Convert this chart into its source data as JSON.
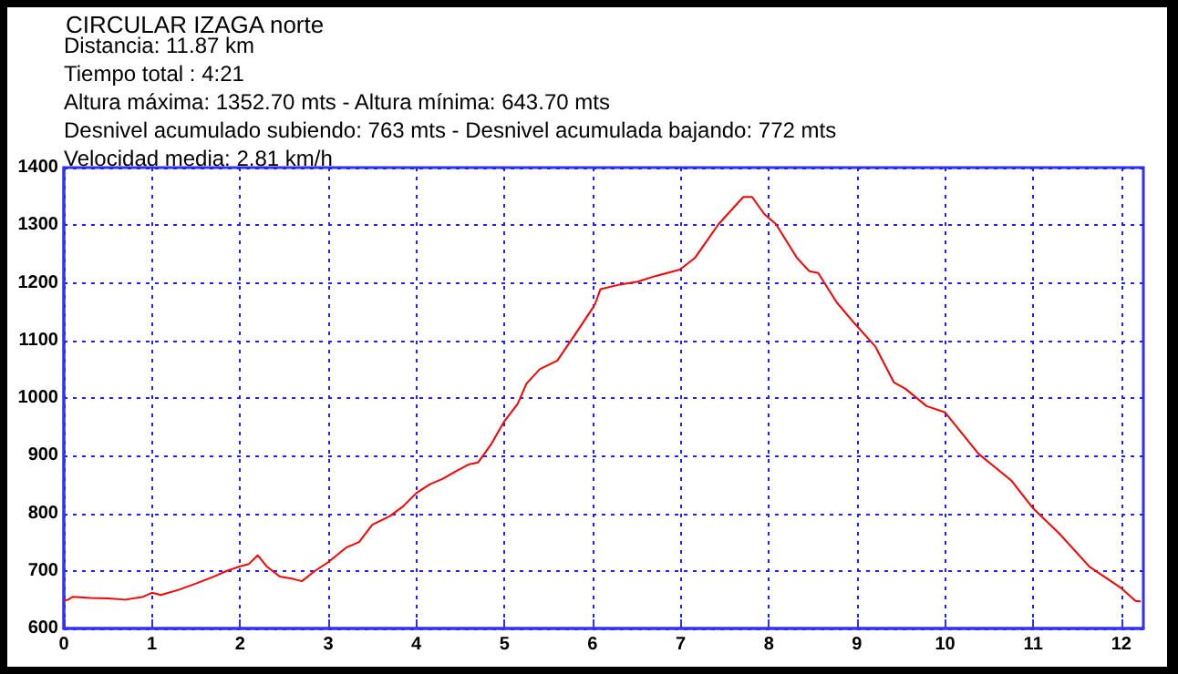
{
  "chart_data": {
    "type": "line",
    "title": "CIRCULAR IZAGA norte",
    "annotations": [
      "Distancia: 11.87 km",
      "Tiempo total : 4:21",
      "Altura máxima: 1352.70 mts - Altura mínima: 643.70 mts",
      "Desnivel acumulado subiendo: 763 mts - Desnivel acumulada bajando: 772 mts",
      "Velocidad media: 2.81 km/h"
    ],
    "series": [
      {
        "color": "#ff0000",
        "x": [
          0,
          0.05,
          0.1,
          0.3,
          0.5,
          0.7,
          0.9,
          1.0,
          1.1,
          1.3,
          1.5,
          1.7,
          1.85,
          2.0,
          2.1,
          2.2,
          2.3,
          2.45,
          2.6,
          2.7,
          2.85,
          3.0,
          3.2,
          3.35,
          3.5,
          3.7,
          3.85,
          4.0,
          4.15,
          4.3,
          4.45,
          4.6,
          4.7,
          4.85,
          5.0,
          5.15,
          5.25,
          5.4,
          5.6,
          5.8,
          6.0,
          6.03,
          6.09,
          6.31,
          6.51,
          6.72,
          6.99,
          7.16,
          7.43,
          7.71,
          7.81,
          7.95,
          8.08,
          8.32,
          8.46,
          8.56,
          8.77,
          8.97,
          9.21,
          9.42,
          9.55,
          9.79,
          10.0,
          10.38,
          10.75,
          10.99,
          11.3,
          11.64,
          11.99,
          12.16,
          12.21
        ],
        "values": [
          648,
          650,
          655,
          653,
          652,
          650,
          655,
          662,
          658,
          667,
          678,
          690,
          700,
          708,
          712,
          727,
          708,
          690,
          686,
          682,
          700,
          715,
          740,
          750,
          780,
          795,
          812,
          835,
          850,
          860,
          873,
          885,
          888,
          920,
          960,
          990,
          1025,
          1050,
          1065,
          1110,
          1156,
          1164,
          1189,
          1197,
          1202,
          1212,
          1223,
          1243,
          1302,
          1349,
          1349,
          1319,
          1302,
          1243,
          1220,
          1217,
          1166,
          1130,
          1089,
          1027,
          1016,
          986,
          975,
          903,
          857,
          810,
          764,
          707,
          671,
          648,
          647
        ]
      }
    ],
    "xlim": [
      0,
      12.25
    ],
    "xticks": [
      0,
      1,
      2,
      3,
      4,
      5,
      6,
      7,
      8,
      9,
      10,
      11,
      12
    ],
    "ylim": [
      600,
      1400
    ],
    "yticks": [
      600,
      700,
      800,
      900,
      1000,
      1100,
      1200,
      1300,
      1400
    ],
    "grid": true,
    "marker": "none",
    "line_style": "solid"
  }
}
